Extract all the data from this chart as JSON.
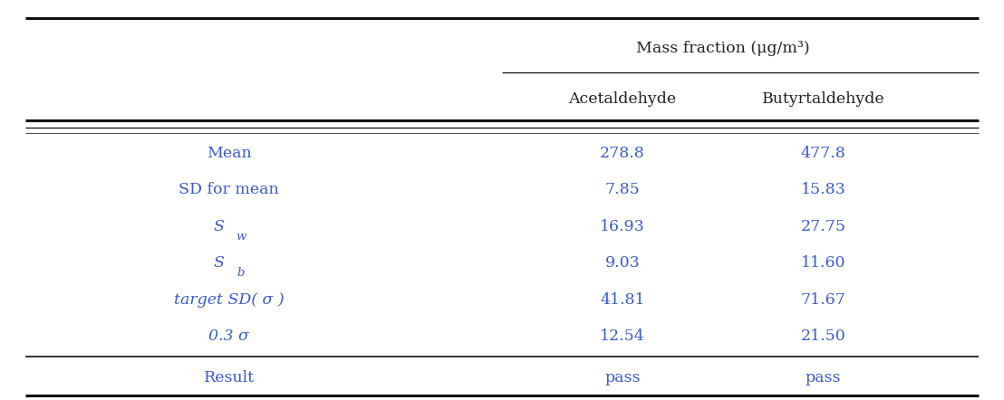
{
  "header_main": "Mass fraction (μg/m³)",
  "header_sub": [
    "Acetaldehyde",
    "Butyrtaldehyde"
  ],
  "row_labels_special": [
    {
      "text": "Mean",
      "type": "plain"
    },
    {
      "text": "SD for mean",
      "type": "plain"
    },
    {
      "text": "S",
      "sub": "w",
      "type": "subscript"
    },
    {
      "text": "S",
      "sub": "b",
      "type": "subscript"
    },
    {
      "text": "target SD( ",
      "sigma": "σ",
      "tail": " )",
      "type": "sigma"
    },
    {
      "text": "0.3 ",
      "sigma": "σ",
      "tail": "",
      "type": "sigma"
    },
    {
      "text": "Result",
      "type": "plain"
    }
  ],
  "col1_values": [
    "278.8",
    "7.85",
    "16.93",
    "9.03",
    "41.81",
    "12.54",
    "pass"
  ],
  "col2_values": [
    "477.8",
    "15.83",
    "27.75",
    "11.60",
    "71.67",
    "21.50",
    "pass"
  ],
  "text_color": "#3a5bcc",
  "header_color": "#222222",
  "bg_color": "#ffffff",
  "line_color": "#111111",
  "font_size": 12.5,
  "header_font_size": 12.5
}
